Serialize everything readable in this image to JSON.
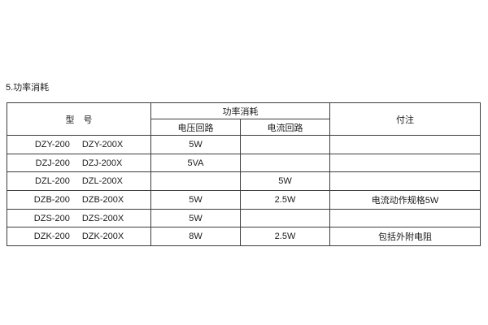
{
  "section_title": "5.功率消耗",
  "colors": {
    "background": "#ffffff",
    "border": "#3c3c3c",
    "text": "#1a1a1a"
  },
  "table": {
    "headers": {
      "model": "型　号",
      "power_consumption": "功率消耗",
      "voltage_circuit": "电压回路",
      "current_circuit": "电流回路",
      "notes": "付注"
    },
    "rows": [
      {
        "model_a": "DZY-200",
        "model_b": "DZY-200X",
        "voltage": "5W",
        "current": "",
        "note": ""
      },
      {
        "model_a": "DZJ-200",
        "model_b": "DZJ-200X",
        "voltage": "5VA",
        "current": "",
        "note": ""
      },
      {
        "model_a": "DZL-200",
        "model_b": "DZL-200X",
        "voltage": "",
        "current": "5W",
        "note": ""
      },
      {
        "model_a": "DZB-200",
        "model_b": "DZB-200X",
        "voltage": "5W",
        "current": "2.5W",
        "note": "电流动作规格5W"
      },
      {
        "model_a": "DZS-200",
        "model_b": "DZS-200X",
        "voltage": "5W",
        "current": "",
        "note": ""
      },
      {
        "model_a": "DZK-200",
        "model_b": "DZK-200X",
        "voltage": "8W",
        "current": "2.5W",
        "note": "包括外附电阻"
      }
    ]
  }
}
